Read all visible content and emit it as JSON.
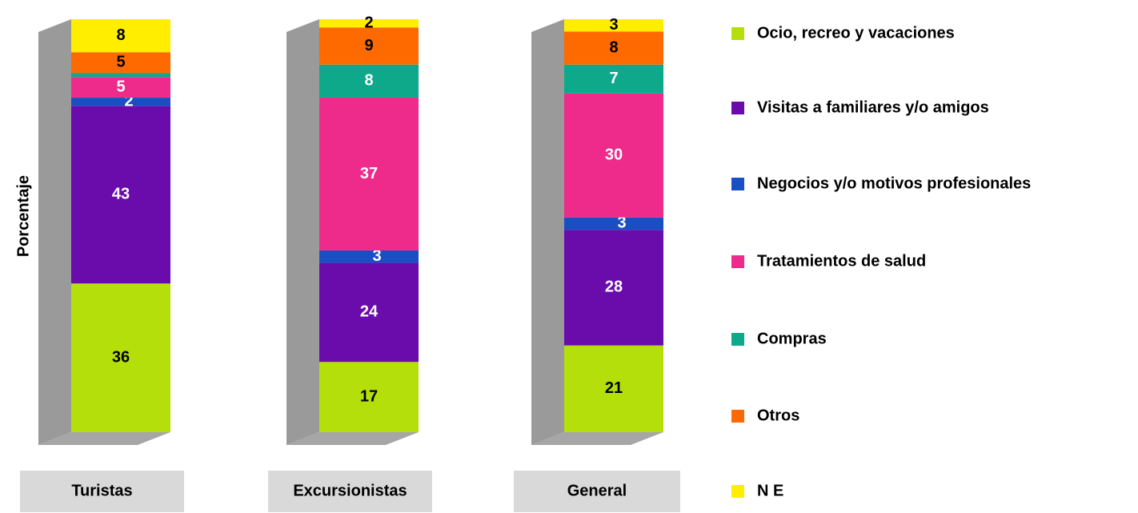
{
  "chart_data": {
    "type": "stacked_bar",
    "y_label": "Porcentaje",
    "categories": [
      "Turistas",
      "Excursionistas",
      "General"
    ],
    "ylim": [
      0,
      100
    ],
    "series": [
      {
        "name": "Ocio, recreo y vacaciones",
        "color": "#b5df0b",
        "values": [
          36,
          17,
          21
        ]
      },
      {
        "name": "Visitas a familiares y/o amigos",
        "color": "#6a0cab",
        "values": [
          43,
          24,
          28
        ]
      },
      {
        "name": "Negocios y/o motivos profesionales",
        "color": "#1a4fc4",
        "values": [
          2,
          3,
          3
        ]
      },
      {
        "name": "Tratamientos de salud",
        "color": "#ee2a8b",
        "values": [
          5,
          37,
          30
        ]
      },
      {
        "name": "Compras",
        "color": "#0ea88b",
        "values": [
          1,
          8,
          7
        ],
        "value_labels": [
          null,
          "8",
          "7"
        ]
      },
      {
        "name": "Otros",
        "color": "#ff6a00",
        "values": [
          5,
          9,
          8
        ]
      },
      {
        "name": "N E",
        "color": "#ffee00",
        "values": [
          8,
          2,
          3
        ]
      }
    ]
  }
}
